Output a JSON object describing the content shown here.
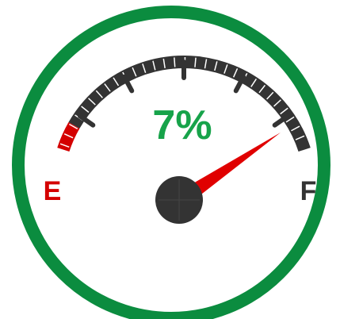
{
  "gauge": {
    "readout": "7%",
    "empty_label": "E",
    "full_label": "F"
  }
}
